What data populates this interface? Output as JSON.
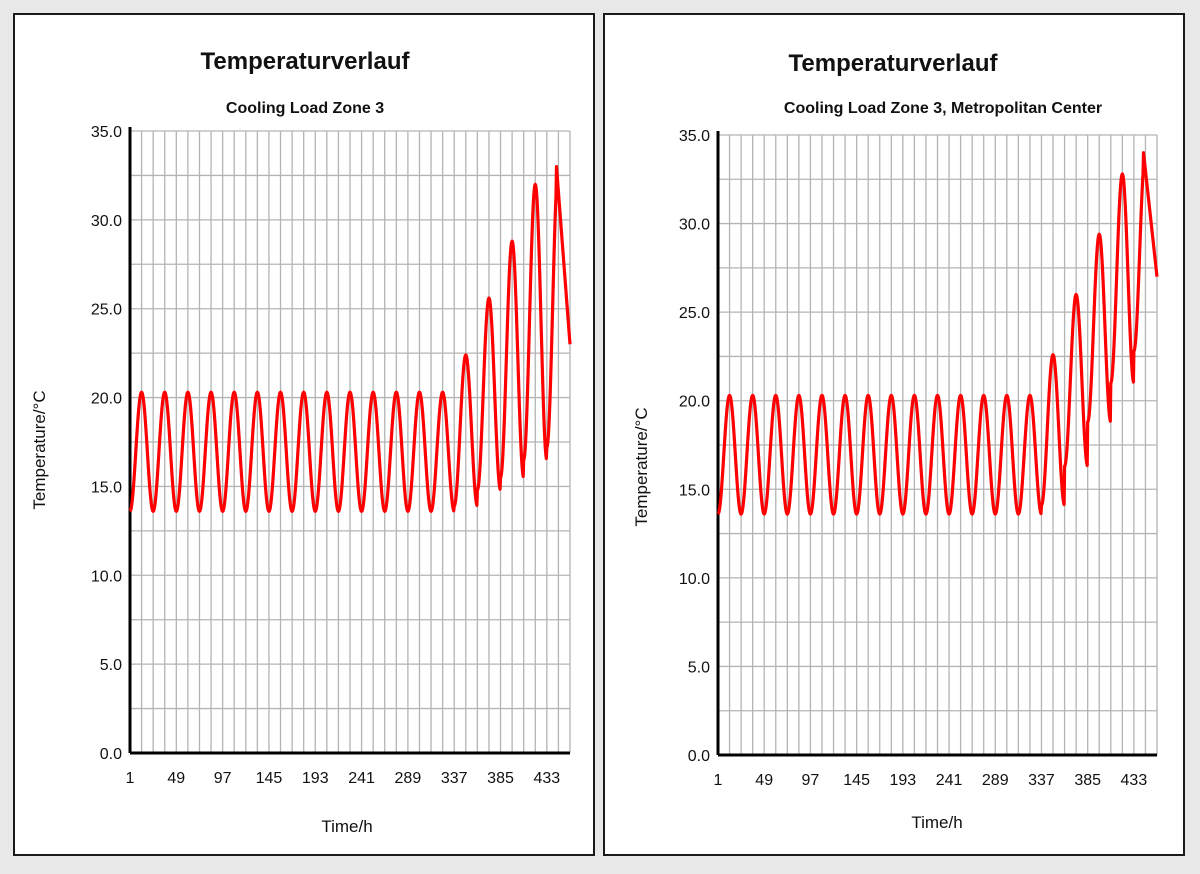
{
  "colors": {
    "series": "#ff0000",
    "grid": "#b4b4b4",
    "axis": "#000000"
  },
  "chart_data": [
    {
      "type": "line",
      "title": "Temperaturverlauf",
      "subtitle": "Cooling Load Zone 3",
      "xlabel": "Time/h",
      "ylabel": "Temperature/°C",
      "xlim": [
        1,
        457
      ],
      "ylim": [
        0,
        35
      ],
      "x_ticks": [
        1,
        49,
        97,
        145,
        193,
        241,
        289,
        337,
        385,
        433
      ],
      "y_ticks": [
        "0.0",
        "5.0",
        "10.0",
        "15.0",
        "20.0",
        "25.0",
        "30.0",
        "35.0"
      ],
      "grid": true,
      "series": [
        {
          "color": "#ff0000",
          "cycles": [
            [
              13.6,
              20.3
            ],
            [
              13.6,
              20.3
            ],
            [
              13.6,
              20.3
            ],
            [
              13.6,
              20.3
            ],
            [
              13.6,
              20.3
            ],
            [
              13.6,
              20.3
            ],
            [
              13.6,
              20.3
            ],
            [
              13.6,
              20.3
            ],
            [
              13.6,
              20.3
            ],
            [
              13.6,
              20.3
            ],
            [
              13.6,
              20.3
            ],
            [
              13.6,
              20.3
            ],
            [
              13.6,
              20.3
            ],
            [
              13.6,
              20.3
            ],
            [
              13.9,
              22.4
            ],
            [
              14.8,
              25.6
            ],
            [
              15.5,
              28.8
            ],
            [
              16.5,
              32.0
            ],
            [
              17.2,
              33.0
            ]
          ],
          "end_value": 23.0
        }
      ]
    },
    {
      "type": "line",
      "title": "Temperaturverlauf",
      "subtitle": "Cooling Load Zone 3, Metropolitan Center",
      "xlabel": "Time/h",
      "ylabel": "Temperature/°C",
      "xlim": [
        1,
        457
      ],
      "ylim": [
        0,
        35
      ],
      "x_ticks": [
        1,
        49,
        97,
        145,
        193,
        241,
        289,
        337,
        385,
        433
      ],
      "y_ticks": [
        "0.0",
        "5.0",
        "10.0",
        "15.0",
        "20.0",
        "25.0",
        "30.0",
        "35.0"
      ],
      "grid": true,
      "series": [
        {
          "color": "#ff0000",
          "cycles": [
            [
              13.6,
              20.3
            ],
            [
              13.6,
              20.3
            ],
            [
              13.6,
              20.3
            ],
            [
              13.6,
              20.3
            ],
            [
              13.6,
              20.3
            ],
            [
              13.6,
              20.3
            ],
            [
              13.6,
              20.3
            ],
            [
              13.6,
              20.3
            ],
            [
              13.6,
              20.3
            ],
            [
              13.6,
              20.3
            ],
            [
              13.6,
              20.3
            ],
            [
              13.6,
              20.3
            ],
            [
              13.6,
              20.3
            ],
            [
              13.6,
              20.3
            ],
            [
              14.1,
              22.6
            ],
            [
              16.3,
              26.0
            ],
            [
              18.8,
              29.4
            ],
            [
              21.0,
              32.8
            ],
            [
              22.8,
              34.0
            ]
          ],
          "end_value": 27.0
        }
      ]
    }
  ]
}
